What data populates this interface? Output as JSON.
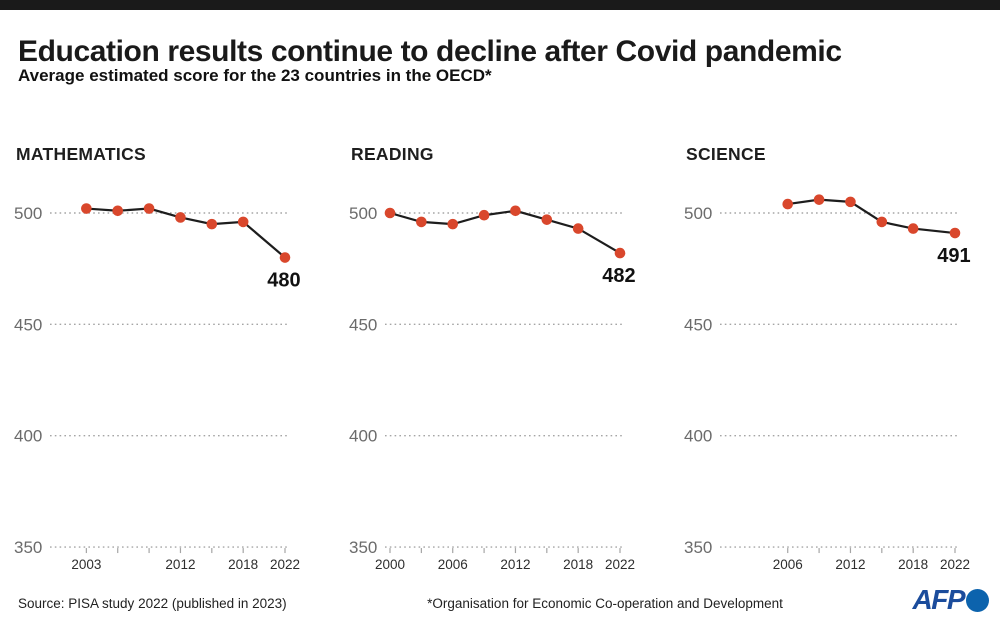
{
  "page": {
    "title": "Education results continue to decline after Covid pandemic",
    "subtitle": "Average estimated score for the 23 countries in the OECD*",
    "source": "Source: PISA study 2022 (published in 2023)",
    "footnote": "*Organisation for Economic Co-operation and Development",
    "logo_text": "AFP"
  },
  "colors": {
    "topbar": "#1a1a1a",
    "accent_red": "#d9472c",
    "series_line": "#1d1d1d",
    "grid": "#a5a5a5",
    "y_label": "#6b6b6b",
    "x_label": "#2e2e2e",
    "end_label": "#111111",
    "logo_text": "#1b4c9c",
    "logo_circle": "#0c63ad"
  },
  "chart_data": [
    {
      "type": "line",
      "title": "MATHEMATICS",
      "x": [
        2003,
        2006,
        2009,
        2012,
        2015,
        2018,
        2022
      ],
      "values": [
        502,
        501,
        502,
        498,
        495,
        496,
        480
      ],
      "end_label": "480",
      "labeled_years": [
        2003,
        2012,
        2018,
        2022
      ],
      "yticks": [
        500,
        450,
        400,
        350
      ],
      "ylim": [
        350,
        515
      ],
      "xrange": [
        2000,
        2022
      ],
      "grid": "dotted",
      "legend_position": "none"
    },
    {
      "type": "line",
      "title": "READING",
      "x": [
        2000,
        2003,
        2006,
        2009,
        2012,
        2015,
        2018,
        2022
      ],
      "values": [
        500,
        496,
        495,
        499,
        501,
        497,
        493,
        482
      ],
      "end_label": "482",
      "labeled_years": [
        2000,
        2006,
        2012,
        2018,
        2022
      ],
      "yticks": [
        500,
        450,
        400,
        350
      ],
      "ylim": [
        350,
        515
      ],
      "xrange": [
        2000,
        2022
      ],
      "grid": "dotted",
      "legend_position": "none"
    },
    {
      "type": "line",
      "title": "SCIENCE",
      "x": [
        2006,
        2009,
        2012,
        2015,
        2018,
        2022
      ],
      "values": [
        504,
        506,
        505,
        496,
        493,
        491
      ],
      "end_label": "491",
      "labeled_years": [
        2006,
        2012,
        2018,
        2022
      ],
      "yticks": [
        500,
        450,
        400,
        350
      ],
      "ylim": [
        350,
        515
      ],
      "xrange": [
        2000,
        2022
      ],
      "grid": "dotted",
      "legend_position": "none"
    }
  ]
}
